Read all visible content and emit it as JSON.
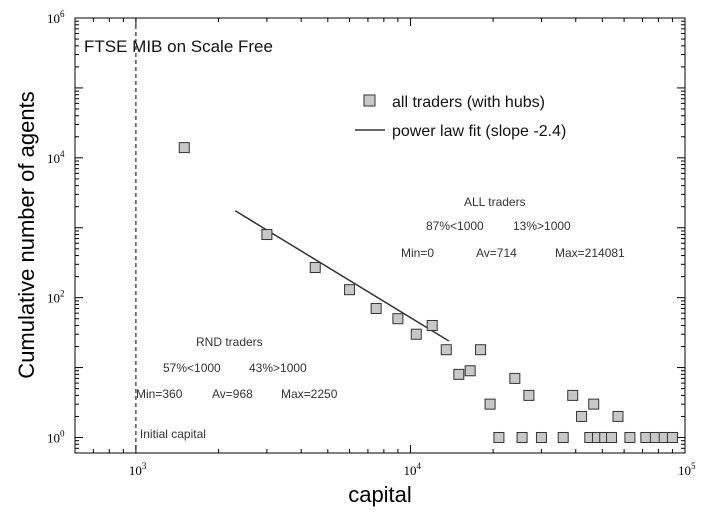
{
  "chart_data": {
    "type": "scatter",
    "title": "FTSE MIB on Scale Free",
    "xlabel": "capital",
    "ylabel": "Cumulative number of agents",
    "xscale": "log",
    "yscale": "log",
    "xlim": [
      600,
      100000
    ],
    "ylim": [
      0.6,
      1000000
    ],
    "x_ticks": [
      {
        "base": "10",
        "exp": "3",
        "value": 1000
      },
      {
        "base": "10",
        "exp": "4",
        "value": 10000
      },
      {
        "base": "10",
        "exp": "5",
        "value": 100000
      }
    ],
    "y_ticks": [
      {
        "base": "10",
        "exp": "0",
        "value": 1
      },
      {
        "base": "10",
        "exp": "2",
        "value": 100
      },
      {
        "base": "10",
        "exp": "4",
        "value": 10000
      },
      {
        "base": "10",
        "exp": "6",
        "value": 1000000
      }
    ],
    "legend_position": "top-right",
    "series": [
      {
        "name": "all traders (with hubs)",
        "kind": "scatter",
        "marker": "square",
        "color": "#c8c8c8",
        "x": [
          1500,
          3000,
          4500,
          6000,
          7500,
          9000,
          10500,
          12000,
          13500,
          15000,
          16500,
          18000,
          19500,
          21000,
          24000,
          25500,
          27000,
          30000,
          36000,
          39000,
          42000,
          45000,
          46500,
          48000,
          51000,
          54000,
          57000,
          63000,
          72000,
          78000,
          84000,
          90000
        ],
        "y": [
          14000,
          800,
          270,
          130,
          70,
          50,
          30,
          40,
          18,
          8,
          9,
          18,
          3,
          1,
          7,
          1,
          4,
          1,
          1,
          4,
          2,
          1,
          3,
          1,
          1,
          1,
          2,
          1,
          1,
          1,
          1,
          1
        ]
      },
      {
        "name": "power law fit (slope -2.4)",
        "kind": "line",
        "color": "#333333",
        "x": [
          2300,
          13800
        ],
        "y": [
          1750,
          24
        ]
      }
    ],
    "reference_line": {
      "x": 1000,
      "label": "Initial capital",
      "style": "dashed"
    },
    "annotations": {
      "all": {
        "title": "ALL traders",
        "pct_below": "87%<1000",
        "pct_above": "13%>1000",
        "min": "Min=0",
        "avg": "Av=714",
        "max": "Max=214081"
      },
      "rnd": {
        "title": "RND traders",
        "pct_below": "57%<1000",
        "pct_above": "43%>1000",
        "min": "Min=360",
        "avg": "Av=968",
        "max": "Max=2250"
      }
    }
  }
}
